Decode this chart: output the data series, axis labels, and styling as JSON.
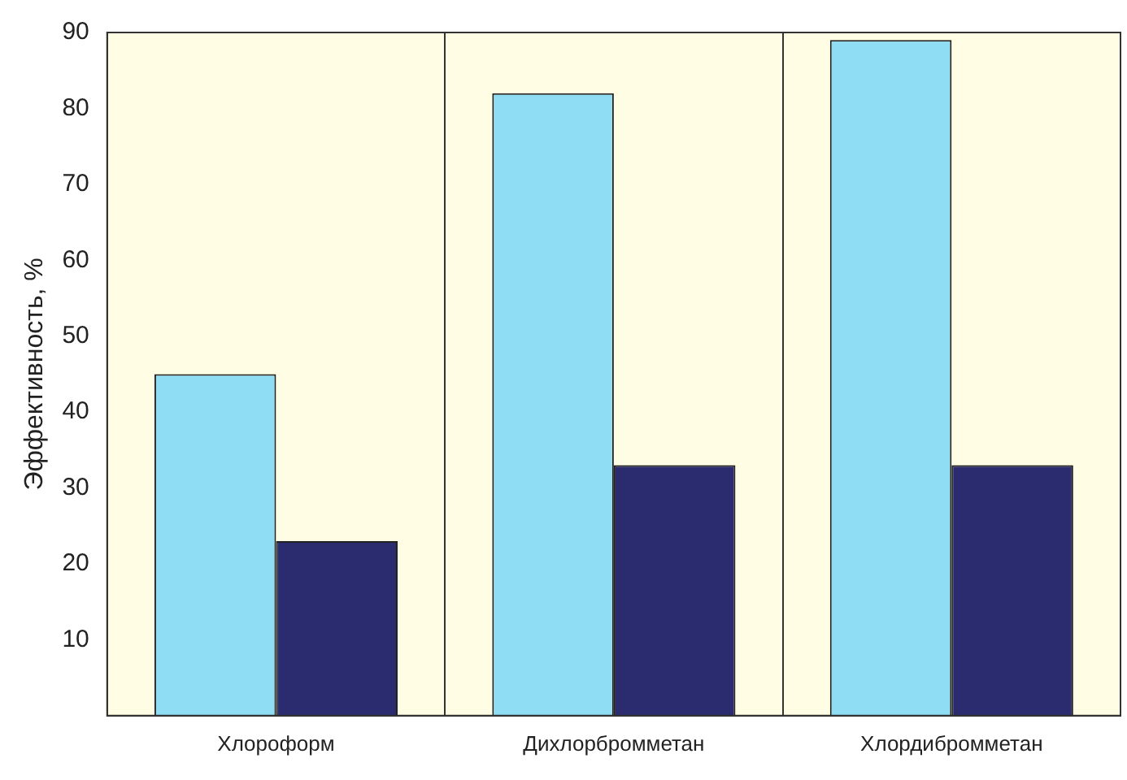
{
  "chart_data": {
    "type": "bar",
    "ylabel": "Эффективность, %",
    "categories": [
      "Хлороформ",
      "Дихлорбромметан",
      "Хлордибромметан"
    ],
    "series": [
      {
        "color": "#8fdcf5",
        "values": [
          45,
          82,
          89
        ]
      },
      {
        "color": "#2b2b70",
        "values": [
          23,
          33,
          33
        ]
      }
    ],
    "ylim": [
      0,
      90
    ],
    "yticks": [
      10,
      20,
      30,
      40,
      50,
      60,
      70,
      80,
      90
    ],
    "grid": "x",
    "legend": false
  }
}
